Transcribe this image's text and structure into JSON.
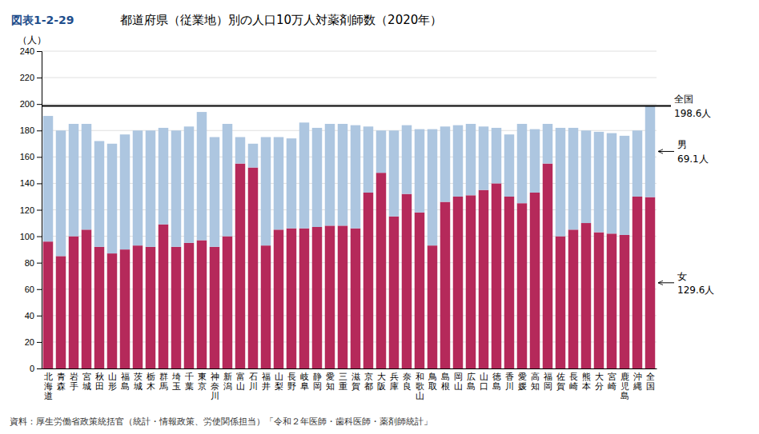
{
  "chart_data": {
    "type": "bar",
    "stacked": true,
    "grid": true,
    "title_prefix": "図表1-2-29",
    "title": "都道府県（従業地）別の人口10万人対薬剤師数（2020年）",
    "ylabel": "（人）",
    "source": "資料：厚生労働省政策統括官（統計・情報政策、労使関係担当）「令和２年医師・歯科医師・薬剤師統計」",
    "categories": [
      "北\n海\n道",
      "青\n森",
      "岩\n手",
      "宮\n城",
      "秋\n田",
      "山\n形",
      "福\n島",
      "茨\n城",
      "栃\n木",
      "群\n馬",
      "埼\n玉",
      "千\n葉",
      "東\n京",
      "神\n奈\n川",
      "新\n潟",
      "富\n山",
      "石\n川",
      "福\n井",
      "山\n梨",
      "長\n野",
      "岐\n阜",
      "静\n岡",
      "愛\n知",
      "三\n重",
      "滋\n賀",
      "京\n都",
      "大\n阪",
      "兵\n庫",
      "奈\n良",
      "和\n歌\n山",
      "鳥\n取",
      "島\n根",
      "岡\n山",
      "広\n島",
      "山\n口",
      "徳\n島",
      "香\n川",
      "愛\n媛",
      "高\n知",
      "福\n岡",
      "佐\n賀",
      "長\n崎",
      "熊\n本",
      "大\n分",
      "宮\n崎",
      "鹿\n児\n島",
      "沖\n縄",
      "全\n国"
    ],
    "series": [
      {
        "name": "女",
        "color": "#b5295a",
        "annotation": "129.6人",
        "values": [
          96.0,
          85.0,
          100.0,
          105.0,
          92.0,
          87.0,
          90.0,
          93.0,
          92.0,
          109.0,
          92.0,
          95.0,
          97.0,
          92.0,
          100.0,
          155.0,
          152.0,
          93.0,
          105.0,
          106.0,
          106.0,
          107.0,
          108.0,
          108.0,
          106.0,
          133.0,
          148.0,
          115.0,
          132.0,
          118.0,
          93.0,
          126.0,
          130.0,
          131.0,
          135.0,
          140.0,
          130.0,
          125.0,
          133.0,
          155.0,
          100.0,
          105.0,
          110.0,
          103.0,
          102.0,
          101.0,
          130.0,
          129.6
        ]
      },
      {
        "name": "男",
        "color": "#adc6e0",
        "annotation": "69.1人",
        "values": [
          95.0,
          95.0,
          85.0,
          80.0,
          80.0,
          83.0,
          87.0,
          87.0,
          88.0,
          73.0,
          88.0,
          88.0,
          97.0,
          83.0,
          85.0,
          20.0,
          18.0,
          82.0,
          70.0,
          68.0,
          80.0,
          75.0,
          77.0,
          77.0,
          78.0,
          50.0,
          32.0,
          65.0,
          52.0,
          63.0,
          88.0,
          57.0,
          54.0,
          54.0,
          48.0,
          42.0,
          47.0,
          60.0,
          48.0,
          30.0,
          82.0,
          77.0,
          70.0,
          76.0,
          76.0,
          75.0,
          50.0,
          69.1
        ]
      }
    ],
    "reference_line": {
      "value": 198.6,
      "text": "全国",
      "label": "198.6人"
    },
    "ylim": [
      0,
      240
    ],
    "yticks": [
      0,
      20,
      40,
      60,
      80,
      100,
      120,
      140,
      160,
      180,
      200,
      220,
      240
    ]
  }
}
